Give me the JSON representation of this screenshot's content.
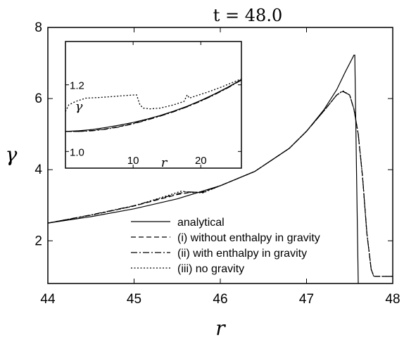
{
  "chart_data": [
    {
      "type": "line",
      "title": "t = 48.0",
      "xlabel": "r",
      "ylabel": "γ",
      "xlim": [
        44,
        48
      ],
      "ylim": [
        0.8,
        8
      ],
      "xticks": [
        "44",
        "45",
        "46",
        "47",
        "48"
      ],
      "yticks": [
        "2",
        "4",
        "6",
        "8"
      ],
      "legend_position": "bottom-right",
      "series": [
        {
          "name": "analytical",
          "style": "solid",
          "x": [
            44.0,
            44.5,
            45.0,
            45.5,
            46.0,
            46.4,
            46.8,
            47.0,
            47.2,
            47.35,
            47.45,
            47.55,
            47.56,
            47.58,
            47.6
          ],
          "y": [
            2.5,
            2.68,
            2.9,
            3.18,
            3.55,
            3.95,
            4.6,
            5.08,
            5.68,
            6.25,
            6.75,
            7.22,
            7.22,
            4.0,
            0.8
          ]
        },
        {
          "name": "(i) without enthalpy in gravity",
          "style": "dashed",
          "x": [
            44.0,
            44.5,
            45.0,
            45.5,
            45.65,
            45.8,
            46.0,
            46.4,
            46.8,
            47.0,
            47.2,
            47.35,
            47.42,
            47.5,
            47.55,
            47.6,
            47.65,
            47.7,
            47.75,
            47.78,
            48.0
          ],
          "y": [
            2.5,
            2.72,
            2.98,
            3.3,
            3.36,
            3.38,
            3.55,
            3.95,
            4.6,
            5.08,
            5.65,
            6.1,
            6.2,
            6.1,
            5.7,
            5.0,
            3.8,
            2.2,
            1.2,
            1.0,
            1.0
          ]
        },
        {
          "name": "(ii) with enthalpy in gravity",
          "style": "dashdot",
          "x": [
            44.0,
            44.5,
            45.0,
            45.5,
            45.6,
            45.8,
            46.0,
            46.4,
            46.8,
            47.0,
            47.2,
            47.35,
            47.42,
            47.5,
            47.55,
            47.6,
            47.65,
            47.7,
            47.75,
            47.78,
            48.0
          ],
          "y": [
            2.5,
            2.73,
            2.99,
            3.32,
            3.38,
            3.36,
            3.55,
            3.95,
            4.6,
            5.08,
            5.65,
            6.1,
            6.21,
            6.1,
            5.7,
            5.0,
            3.8,
            2.2,
            1.2,
            1.0,
            1.0
          ]
        },
        {
          "name": "(iii) no gravity",
          "style": "dotted",
          "x": [
            44.0,
            44.5,
            45.0,
            45.4,
            45.55,
            45.65,
            45.8,
            46.0,
            46.4,
            46.8,
            47.0,
            47.2,
            47.35,
            47.42,
            47.5,
            47.55,
            47.6,
            47.65,
            47.7,
            47.75,
            47.78,
            48.0
          ],
          "y": [
            2.5,
            2.72,
            2.98,
            3.28,
            3.4,
            3.36,
            3.35,
            3.55,
            3.95,
            4.6,
            5.08,
            5.65,
            6.1,
            6.22,
            6.1,
            5.7,
            5.0,
            3.8,
            2.2,
            1.2,
            1.0,
            1.0
          ]
        }
      ]
    },
    {
      "type": "line",
      "title": "",
      "xlabel": "r",
      "ylabel": "γ",
      "xlim": [
        0,
        26
      ],
      "ylim": [
        0.95,
        1.33
      ],
      "xticks": [
        "10",
        "20"
      ],
      "yticks": [
        "1.0",
        "1.2"
      ],
      "series": [
        {
          "name": "analytical",
          "style": "solid",
          "x": [
            0,
            2,
            4,
            6,
            8,
            10,
            12,
            14,
            16,
            18,
            20,
            22,
            24,
            26
          ],
          "y": [
            1.06,
            1.062,
            1.066,
            1.072,
            1.079,
            1.087,
            1.097,
            1.108,
            1.121,
            1.136,
            1.153,
            1.172,
            1.193,
            1.216
          ]
        },
        {
          "name": "(i) without enthalpy in gravity",
          "style": "dashed",
          "x": [
            0,
            2,
            4,
            6,
            8,
            10,
            12,
            14,
            16,
            18,
            20,
            22,
            24,
            26
          ],
          "y": [
            1.06,
            1.06,
            1.063,
            1.068,
            1.075,
            1.084,
            1.095,
            1.107,
            1.12,
            1.135,
            1.152,
            1.171,
            1.192,
            1.215
          ]
        },
        {
          "name": "(ii) with enthalpy in gravity",
          "style": "dashdot",
          "x": [
            0,
            2,
            4,
            6,
            8,
            10,
            12,
            14,
            16,
            18,
            20,
            22,
            24,
            26
          ],
          "y": [
            1.06,
            1.06,
            1.062,
            1.067,
            1.074,
            1.083,
            1.094,
            1.106,
            1.119,
            1.134,
            1.151,
            1.17,
            1.191,
            1.214
          ]
        },
        {
          "name": "(iii) no gravity",
          "style": "dotted",
          "x": [
            0,
            0.5,
            1.5,
            3,
            5,
            7,
            9,
            10.5,
            11,
            11.5,
            12.5,
            14,
            16,
            17.5,
            18,
            18.3,
            19,
            21,
            23,
            26
          ],
          "y": [
            1.12,
            1.14,
            1.15,
            1.16,
            1.162,
            1.165,
            1.168,
            1.17,
            1.14,
            1.13,
            1.128,
            1.13,
            1.14,
            1.15,
            1.17,
            1.16,
            1.165,
            1.178,
            1.193,
            1.218
          ]
        }
      ]
    }
  ]
}
